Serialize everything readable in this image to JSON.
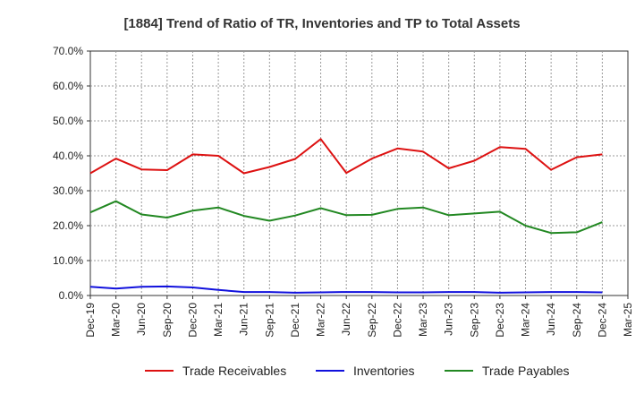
{
  "chart_data": {
    "type": "line",
    "title": "[1884]  Trend of Ratio of TR, Inventories and TP to Total Assets",
    "xlabel": "",
    "ylabel": "",
    "x": [
      "Dec-19",
      "Mar-20",
      "Jun-20",
      "Sep-20",
      "Dec-20",
      "Mar-21",
      "Jun-21",
      "Sep-21",
      "Dec-21",
      "Mar-22",
      "Jun-22",
      "Sep-22",
      "Dec-22",
      "Mar-23",
      "Jun-23",
      "Sep-23",
      "Dec-23",
      "Mar-24",
      "Jun-24",
      "Sep-24",
      "Dec-24",
      "Mar-25"
    ],
    "ylim": [
      0,
      70
    ],
    "yticks": [
      "0.0%",
      "10.0%",
      "20.0%",
      "30.0%",
      "40.0%",
      "50.0%",
      "60.0%",
      "70.0%"
    ],
    "grid": true,
    "legend_position": "bottom",
    "series": [
      {
        "name": "Trade Receivables",
        "color": "#dd1111",
        "values": [
          35.0,
          39.2,
          36.1,
          35.9,
          40.4,
          40.0,
          35.0,
          36.8,
          39.1,
          44.8,
          35.1,
          39.2,
          42.1,
          41.2,
          36.4,
          38.6,
          42.5,
          42.0,
          36.0,
          39.6,
          40.4,
          null
        ]
      },
      {
        "name": "Inventories",
        "color": "#1111dd",
        "values": [
          2.5,
          2.0,
          2.5,
          2.6,
          2.3,
          1.6,
          1.0,
          1.0,
          0.8,
          0.9,
          1.0,
          1.0,
          0.9,
          0.9,
          1.0,
          1.0,
          0.8,
          0.9,
          1.0,
          1.0,
          0.9,
          null
        ]
      },
      {
        "name": "Trade Payables",
        "color": "#228822",
        "values": [
          23.8,
          27.0,
          23.2,
          22.3,
          24.3,
          25.2,
          22.8,
          21.4,
          22.9,
          25.0,
          23.0,
          23.1,
          24.8,
          25.2,
          23.0,
          23.5,
          24.0,
          20.0,
          17.9,
          18.1,
          21.0,
          null
        ]
      }
    ]
  }
}
